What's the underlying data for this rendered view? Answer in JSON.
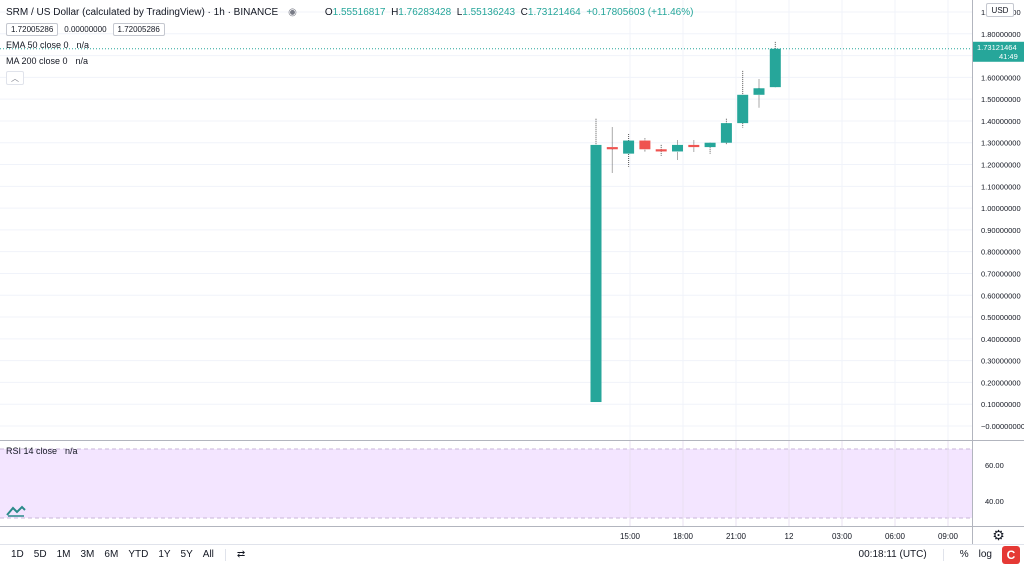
{
  "legend": {
    "title": "SRM / US Dollar (calculated by TradingView) · 1h · BINANCE",
    "o_label": "O",
    "o_value": "1.55516817",
    "h_label": "H",
    "h_value": "1.76283428",
    "l_label": "L",
    "l_value": "1.55136243",
    "c_label": "C",
    "c_value": "1.73121464",
    "change": "+0.17805603 (+11.46%)",
    "bid": "1.72005286",
    "spread": "0.00000000",
    "ask": "1.72005286"
  },
  "indicators": {
    "ema": {
      "name": "EMA 50 close 0",
      "value": "n/a"
    },
    "ma": {
      "name": "MA 200 close 0",
      "value": "n/a"
    },
    "rsi": {
      "name": "RSI 14 close",
      "value": "n/a"
    }
  },
  "currency_button": "USD",
  "price_labels": [
    "1.90000000",
    "1.80000000",
    "1.70000000",
    "1.60000000",
    "1.50000000",
    "1.40000000",
    "1.30000000",
    "1.20000000",
    "1.10000000",
    "1.00000000",
    "0.90000000",
    "0.80000000",
    "0.70000000",
    "0.60000000",
    "0.50000000",
    "0.40000000",
    "0.30000000",
    "0.20000000",
    "0.10000000",
    "−0.00000000"
  ],
  "last_price": {
    "value": "1.73121464",
    "countdown": "41:49"
  },
  "rsi_labels": [
    "60.00",
    "40.00"
  ],
  "time_labels": [
    "15:00",
    "18:00",
    "21:00",
    "12",
    "03:00",
    "06:00",
    "09:00"
  ],
  "bottom_bar": {
    "ranges": [
      "1D",
      "5D",
      "1M",
      "3M",
      "6M",
      "YTD",
      "1Y",
      "5Y",
      "All"
    ],
    "clock": "00:18:11 (UTC)",
    "percent": "%",
    "log": "log"
  },
  "colors": {
    "up": "#26a69a",
    "down": "#ef5350",
    "rsi_band": "#f3e5ff",
    "grid": "#f0f3fa"
  },
  "chart_data": {
    "type": "candlestick",
    "title": "SRM / US Dollar (calculated by TradingView) · 1h · BINANCE",
    "xlabel": "",
    "ylabel": "",
    "ylim": [
      -0.05,
      1.95
    ],
    "candles": [
      {
        "o": 0.11,
        "h": 1.41,
        "l": 0.11,
        "c": 1.29
      },
      {
        "o": 1.28,
        "h": 1.37,
        "l": 1.16,
        "c": 1.27
      },
      {
        "o": 1.25,
        "h": 1.34,
        "l": 1.19,
        "c": 1.31
      },
      {
        "o": 1.31,
        "h": 1.32,
        "l": 1.26,
        "c": 1.27
      },
      {
        "o": 1.27,
        "h": 1.29,
        "l": 1.24,
        "c": 1.26
      },
      {
        "o": 1.26,
        "h": 1.31,
        "l": 1.22,
        "c": 1.29
      },
      {
        "o": 1.29,
        "h": 1.31,
        "l": 1.26,
        "c": 1.28
      },
      {
        "o": 1.28,
        "h": 1.3,
        "l": 1.25,
        "c": 1.3
      },
      {
        "o": 1.3,
        "h": 1.41,
        "l": 1.29,
        "c": 1.39
      },
      {
        "o": 1.39,
        "h": 1.63,
        "l": 1.37,
        "c": 1.52
      },
      {
        "o": 1.52,
        "h": 1.59,
        "l": 1.46,
        "c": 1.55
      },
      {
        "o": 1.55516817,
        "h": 1.76283428,
        "l": 1.55136243,
        "c": 1.73121464
      }
    ]
  }
}
